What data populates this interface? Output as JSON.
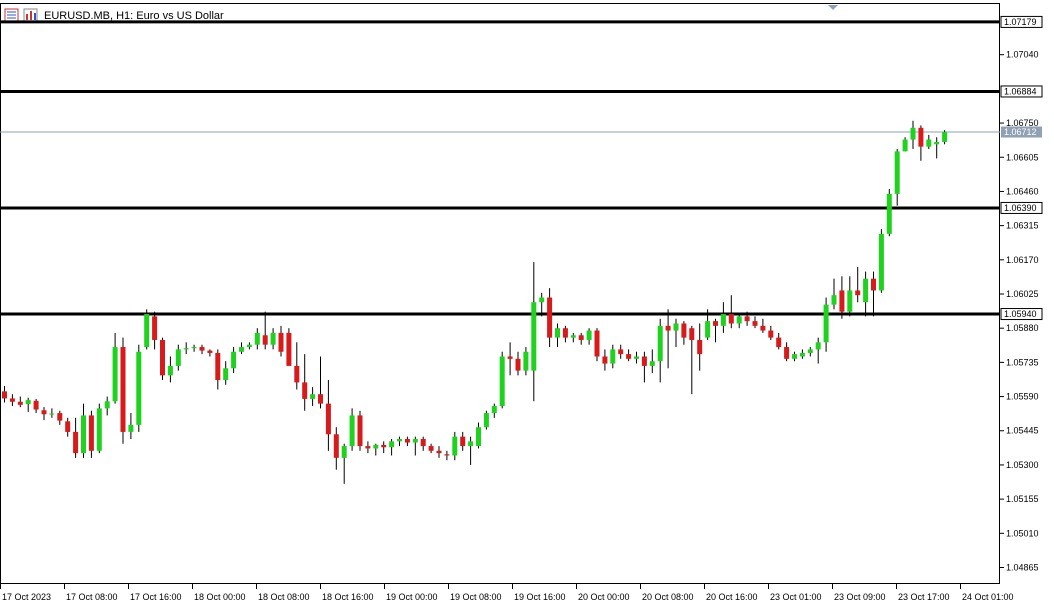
{
  "window": {
    "title": "EURUSD.MB, H1:  Euro vs US Dollar",
    "icon_names": [
      "table-icon",
      "chart-bars-icon"
    ]
  },
  "colors": {
    "bull": "#1ed31e",
    "bear": "#d91a1a",
    "wick": "#000000",
    "hline": "#000000",
    "current_line": "#8fa1b3",
    "current_label_bg": "#8fa1b3"
  },
  "chart_data": {
    "type": "candlestick",
    "symbol": "EURUSD.MB",
    "timeframe": "H1",
    "ylim": [
      1.04795,
      1.07255
    ],
    "y_ticks": [
      "1.07040",
      "1.06750",
      "1.06605",
      "1.06460",
      "1.06315",
      "1.06170",
      "1.06025",
      "1.05880",
      "1.05735",
      "1.05590",
      "1.05445",
      "1.05300",
      "1.05155",
      "1.05010",
      "1.04865"
    ],
    "x_labels": [
      "17 Oct 2023",
      "17 Oct 08:00",
      "17 Oct 16:00",
      "18 Oct 00:00",
      "18 Oct 08:00",
      "18 Oct 16:00",
      "19 Oct 00:00",
      "19 Oct 08:00",
      "19 Oct 16:00",
      "20 Oct 00:00",
      "20 Oct 08:00",
      "20 Oct 16:00",
      "23 Oct 01:00",
      "23 Oct 09:00",
      "23 Oct 17:00",
      "24 Oct 01:00"
    ],
    "horizontal_lines": [
      "1.07179",
      "1.06884",
      "1.06390",
      "1.05940"
    ],
    "current_price": "1.06712",
    "ohlc": [
      {
        "o": 1.05612,
        "h": 1.05635,
        "l": 1.05565,
        "c": 1.05582
      },
      {
        "o": 1.05582,
        "h": 1.056,
        "l": 1.0555,
        "c": 1.05568
      },
      {
        "o": 1.05568,
        "h": 1.0559,
        "l": 1.05545,
        "c": 1.05555
      },
      {
        "o": 1.05558,
        "h": 1.05585,
        "l": 1.05525,
        "c": 1.05575
      },
      {
        "o": 1.05572,
        "h": 1.0558,
        "l": 1.0552,
        "c": 1.05535
      },
      {
        "o": 1.05532,
        "h": 1.05545,
        "l": 1.0549,
        "c": 1.05515
      },
      {
        "o": 1.05515,
        "h": 1.0554,
        "l": 1.055,
        "c": 1.05518
      },
      {
        "o": 1.0552,
        "h": 1.0553,
        "l": 1.0547,
        "c": 1.05488
      },
      {
        "o": 1.05485,
        "h": 1.055,
        "l": 1.0542,
        "c": 1.0544
      },
      {
        "o": 1.0544,
        "h": 1.055,
        "l": 1.0533,
        "c": 1.0535
      },
      {
        "o": 1.0535,
        "h": 1.0556,
        "l": 1.0533,
        "c": 1.0551
      },
      {
        "o": 1.0551,
        "h": 1.0553,
        "l": 1.0533,
        "c": 1.0536
      },
      {
        "o": 1.0536,
        "h": 1.0556,
        "l": 1.0535,
        "c": 1.0554
      },
      {
        "o": 1.0554,
        "h": 1.0559,
        "l": 1.0551,
        "c": 1.0557
      },
      {
        "o": 1.0557,
        "h": 1.0586,
        "l": 1.0556,
        "c": 1.058
      },
      {
        "o": 1.058,
        "h": 1.0584,
        "l": 1.0539,
        "c": 1.0544
      },
      {
        "o": 1.0544,
        "h": 1.0552,
        "l": 1.0541,
        "c": 1.0547
      },
      {
        "o": 1.0547,
        "h": 1.0581,
        "l": 1.0544,
        "c": 1.0578
      },
      {
        "o": 1.058,
        "h": 1.0596,
        "l": 1.0579,
        "c": 1.0594
      },
      {
        "o": 1.0593,
        "h": 1.0595,
        "l": 1.0579,
        "c": 1.0583
      },
      {
        "o": 1.0583,
        "h": 1.0584,
        "l": 1.0566,
        "c": 1.0568
      },
      {
        "o": 1.0568,
        "h": 1.0576,
        "l": 1.0565,
        "c": 1.0572
      },
      {
        "o": 1.0572,
        "h": 1.0581,
        "l": 1.057,
        "c": 1.0579
      },
      {
        "o": 1.0579,
        "h": 1.0582,
        "l": 1.0577,
        "c": 1.05795
      },
      {
        "o": 1.05795,
        "h": 1.0581,
        "l": 1.0578,
        "c": 1.058
      },
      {
        "o": 1.058,
        "h": 1.0581,
        "l": 1.0577,
        "c": 1.05785
      },
      {
        "o": 1.05785,
        "h": 1.0579,
        "l": 1.0576,
        "c": 1.05775
      },
      {
        "o": 1.05775,
        "h": 1.0579,
        "l": 1.0562,
        "c": 1.0566
      },
      {
        "o": 1.0566,
        "h": 1.0574,
        "l": 1.0564,
        "c": 1.0571
      },
      {
        "o": 1.0571,
        "h": 1.058,
        "l": 1.0569,
        "c": 1.0578
      },
      {
        "o": 1.0578,
        "h": 1.0582,
        "l": 1.0577,
        "c": 1.058
      },
      {
        "o": 1.058,
        "h": 1.0582,
        "l": 1.0579,
        "c": 1.0581
      },
      {
        "o": 1.0581,
        "h": 1.0588,
        "l": 1.0579,
        "c": 1.0586
      },
      {
        "o": 1.0585,
        "h": 1.0595,
        "l": 1.0579,
        "c": 1.0581
      },
      {
        "o": 1.0581,
        "h": 1.0588,
        "l": 1.0579,
        "c": 1.0586
      },
      {
        "o": 1.0586,
        "h": 1.0589,
        "l": 1.0576,
        "c": 1.0578
      },
      {
        "o": 1.0586,
        "h": 1.0588,
        "l": 1.0574,
        "c": 1.0572
      },
      {
        "o": 1.0572,
        "h": 1.0582,
        "l": 1.0562,
        "c": 1.0565
      },
      {
        "o": 1.0565,
        "h": 1.0577,
        "l": 1.0553,
        "c": 1.0558
      },
      {
        "o": 1.0558,
        "h": 1.0563,
        "l": 1.0555,
        "c": 1.056
      },
      {
        "o": 1.056,
        "h": 1.0576,
        "l": 1.0554,
        "c": 1.0556
      },
      {
        "o": 1.0556,
        "h": 1.0566,
        "l": 1.0536,
        "c": 1.0543
      },
      {
        "o": 1.0543,
        "h": 1.0546,
        "l": 1.0528,
        "c": 1.0533
      },
      {
        "o": 1.0533,
        "h": 1.0539,
        "l": 1.0522,
        "c": 1.0538
      },
      {
        "o": 1.0538,
        "h": 1.0554,
        "l": 1.0536,
        "c": 1.0551
      },
      {
        "o": 1.0551,
        "h": 1.0553,
        "l": 1.0536,
        "c": 1.0538
      },
      {
        "o": 1.0538,
        "h": 1.054,
        "l": 1.0535,
        "c": 1.0537
      },
      {
        "o": 1.0537,
        "h": 1.0539,
        "l": 1.0534,
        "c": 1.05385
      },
      {
        "o": 1.05385,
        "h": 1.054,
        "l": 1.0535,
        "c": 1.05375
      },
      {
        "o": 1.05375,
        "h": 1.0541,
        "l": 1.0534,
        "c": 1.054
      },
      {
        "o": 1.054,
        "h": 1.0542,
        "l": 1.0538,
        "c": 1.0541
      },
      {
        "o": 1.0541,
        "h": 1.0542,
        "l": 1.0538,
        "c": 1.05395
      },
      {
        "o": 1.05395,
        "h": 1.0542,
        "l": 1.0534,
        "c": 1.0541
      },
      {
        "o": 1.0541,
        "h": 1.0542,
        "l": 1.0536,
        "c": 1.0538
      },
      {
        "o": 1.0538,
        "h": 1.0539,
        "l": 1.0535,
        "c": 1.0536
      },
      {
        "o": 1.0536,
        "h": 1.0538,
        "l": 1.0533,
        "c": 1.0535
      },
      {
        "o": 1.05345,
        "h": 1.0536,
        "l": 1.0532,
        "c": 1.0534
      },
      {
        "o": 1.0534,
        "h": 1.0544,
        "l": 1.0532,
        "c": 1.0542
      },
      {
        "o": 1.0542,
        "h": 1.0544,
        "l": 1.0536,
        "c": 1.0538
      },
      {
        "o": 1.0538,
        "h": 1.0542,
        "l": 1.053,
        "c": 1.054
      },
      {
        "o": 1.0538,
        "h": 1.0548,
        "l": 1.0537,
        "c": 1.0546
      },
      {
        "o": 1.0546,
        "h": 1.0553,
        "l": 1.0545,
        "c": 1.0552
      },
      {
        "o": 1.0552,
        "h": 1.0556,
        "l": 1.055,
        "c": 1.0555
      },
      {
        "o": 1.0555,
        "h": 1.0578,
        "l": 1.0554,
        "c": 1.0576
      },
      {
        "o": 1.0576,
        "h": 1.0582,
        "l": 1.0568,
        "c": 1.0575
      },
      {
        "o": 1.0575,
        "h": 1.0578,
        "l": 1.0568,
        "c": 1.057
      },
      {
        "o": 1.057,
        "h": 1.058,
        "l": 1.0568,
        "c": 1.0578
      },
      {
        "o": 1.057,
        "h": 1.0616,
        "l": 1.0557,
        "c": 1.0599
      },
      {
        "o": 1.0599,
        "h": 1.0603,
        "l": 1.0593,
        "c": 1.0601
      },
      {
        "o": 1.0601,
        "h": 1.0605,
        "l": 1.058,
        "c": 1.0584
      },
      {
        "o": 1.0584,
        "h": 1.059,
        "l": 1.058,
        "c": 1.0588
      },
      {
        "o": 1.0588,
        "h": 1.0589,
        "l": 1.0582,
        "c": 1.0584
      },
      {
        "o": 1.0584,
        "h": 1.0586,
        "l": 1.0582,
        "c": 1.0585
      },
      {
        "o": 1.0585,
        "h": 1.0586,
        "l": 1.0581,
        "c": 1.0583
      },
      {
        "o": 1.0583,
        "h": 1.0588,
        "l": 1.0581,
        "c": 1.0587
      },
      {
        "o": 1.0587,
        "h": 1.0588,
        "l": 1.0574,
        "c": 1.0576
      },
      {
        "o": 1.0576,
        "h": 1.0579,
        "l": 1.057,
        "c": 1.0573
      },
      {
        "o": 1.0573,
        "h": 1.0581,
        "l": 1.0571,
        "c": 1.0579
      },
      {
        "o": 1.0579,
        "h": 1.0581,
        "l": 1.0575,
        "c": 1.0577
      },
      {
        "o": 1.0577,
        "h": 1.0579,
        "l": 1.0574,
        "c": 1.0575
      },
      {
        "o": 1.0575,
        "h": 1.0578,
        "l": 1.0573,
        "c": 1.0576
      },
      {
        "o": 1.0576,
        "h": 1.0578,
        "l": 1.0565,
        "c": 1.0572
      },
      {
        "o": 1.0572,
        "h": 1.0579,
        "l": 1.0569,
        "c": 1.0574
      },
      {
        "o": 1.0574,
        "h": 1.0592,
        "l": 1.0565,
        "c": 1.0589
      },
      {
        "o": 1.0589,
        "h": 1.0596,
        "l": 1.0571,
        "c": 1.0587
      },
      {
        "o": 1.0587,
        "h": 1.0592,
        "l": 1.058,
        "c": 1.059
      },
      {
        "o": 1.059,
        "h": 1.0591,
        "l": 1.0581,
        "c": 1.0584
      },
      {
        "o": 1.0588,
        "h": 1.0589,
        "l": 1.056,
        "c": 1.0583
      },
      {
        "o": 1.0583,
        "h": 1.059,
        "l": 1.057,
        "c": 1.0577
      },
      {
        "o": 1.0584,
        "h": 1.0596,
        "l": 1.0583,
        "c": 1.0591
      },
      {
        "o": 1.0591,
        "h": 1.0592,
        "l": 1.0582,
        "c": 1.0589
      },
      {
        "o": 1.0589,
        "h": 1.0599,
        "l": 1.0586,
        "c": 1.0594
      },
      {
        "o": 1.0594,
        "h": 1.0602,
        "l": 1.0588,
        "c": 1.059
      },
      {
        "o": 1.059,
        "h": 1.0594,
        "l": 1.0588,
        "c": 1.0593
      },
      {
        "o": 1.0593,
        "h": 1.0595,
        "l": 1.0589,
        "c": 1.0591
      },
      {
        "o": 1.0591,
        "h": 1.0593,
        "l": 1.0588,
        "c": 1.0589
      },
      {
        "o": 1.0589,
        "h": 1.0592,
        "l": 1.0586,
        "c": 1.0587
      },
      {
        "o": 1.0587,
        "h": 1.0589,
        "l": 1.0583,
        "c": 1.0584
      },
      {
        "o": 1.0584,
        "h": 1.0586,
        "l": 1.0579,
        "c": 1.058
      },
      {
        "o": 1.058,
        "h": 1.0582,
        "l": 1.0574,
        "c": 1.0575
      },
      {
        "o": 1.0575,
        "h": 1.0578,
        "l": 1.0574,
        "c": 1.0577
      },
      {
        "o": 1.0576,
        "h": 1.0579,
        "l": 1.0575,
        "c": 1.05775
      },
      {
        "o": 1.05775,
        "h": 1.058,
        "l": 1.0576,
        "c": 1.0579
      },
      {
        "o": 1.0579,
        "h": 1.0584,
        "l": 1.0573,
        "c": 1.0582
      },
      {
        "o": 1.0582,
        "h": 1.0601,
        "l": 1.0578,
        "c": 1.0598
      },
      {
        "o": 1.0598,
        "h": 1.0609,
        "l": 1.0596,
        "c": 1.0602
      },
      {
        "o": 1.0604,
        "h": 1.061,
        "l": 1.0592,
        "c": 1.0595
      },
      {
        "o": 1.0595,
        "h": 1.061,
        "l": 1.0593,
        "c": 1.0604
      },
      {
        "o": 1.0604,
        "h": 1.0614,
        "l": 1.0599,
        "c": 1.0602
      },
      {
        "o": 1.0599,
        "h": 1.0612,
        "l": 1.0593,
        "c": 1.0609
      },
      {
        "o": 1.0609,
        "h": 1.0612,
        "l": 1.0593,
        "c": 1.0604
      },
      {
        "o": 1.0604,
        "h": 1.063,
        "l": 1.0603,
        "c": 1.0628
      },
      {
        "o": 1.0628,
        "h": 1.0647,
        "l": 1.0627,
        "c": 1.0645
      },
      {
        "o": 1.0645,
        "h": 1.0664,
        "l": 1.064,
        "c": 1.0663
      },
      {
        "o": 1.0663,
        "h": 1.0669,
        "l": 1.0663,
        "c": 1.0668
      },
      {
        "o": 1.0668,
        "h": 1.0676,
        "l": 1.0664,
        "c": 1.0673
      },
      {
        "o": 1.0673,
        "h": 1.0674,
        "l": 1.0659,
        "c": 1.0665
      },
      {
        "o": 1.0665,
        "h": 1.067,
        "l": 1.0664,
        "c": 1.0668
      },
      {
        "o": 1.0666,
        "h": 1.0669,
        "l": 1.066,
        "c": 1.0667
      },
      {
        "o": 1.0667,
        "h": 1.0672,
        "l": 1.0666,
        "c": 1.06712
      }
    ]
  }
}
